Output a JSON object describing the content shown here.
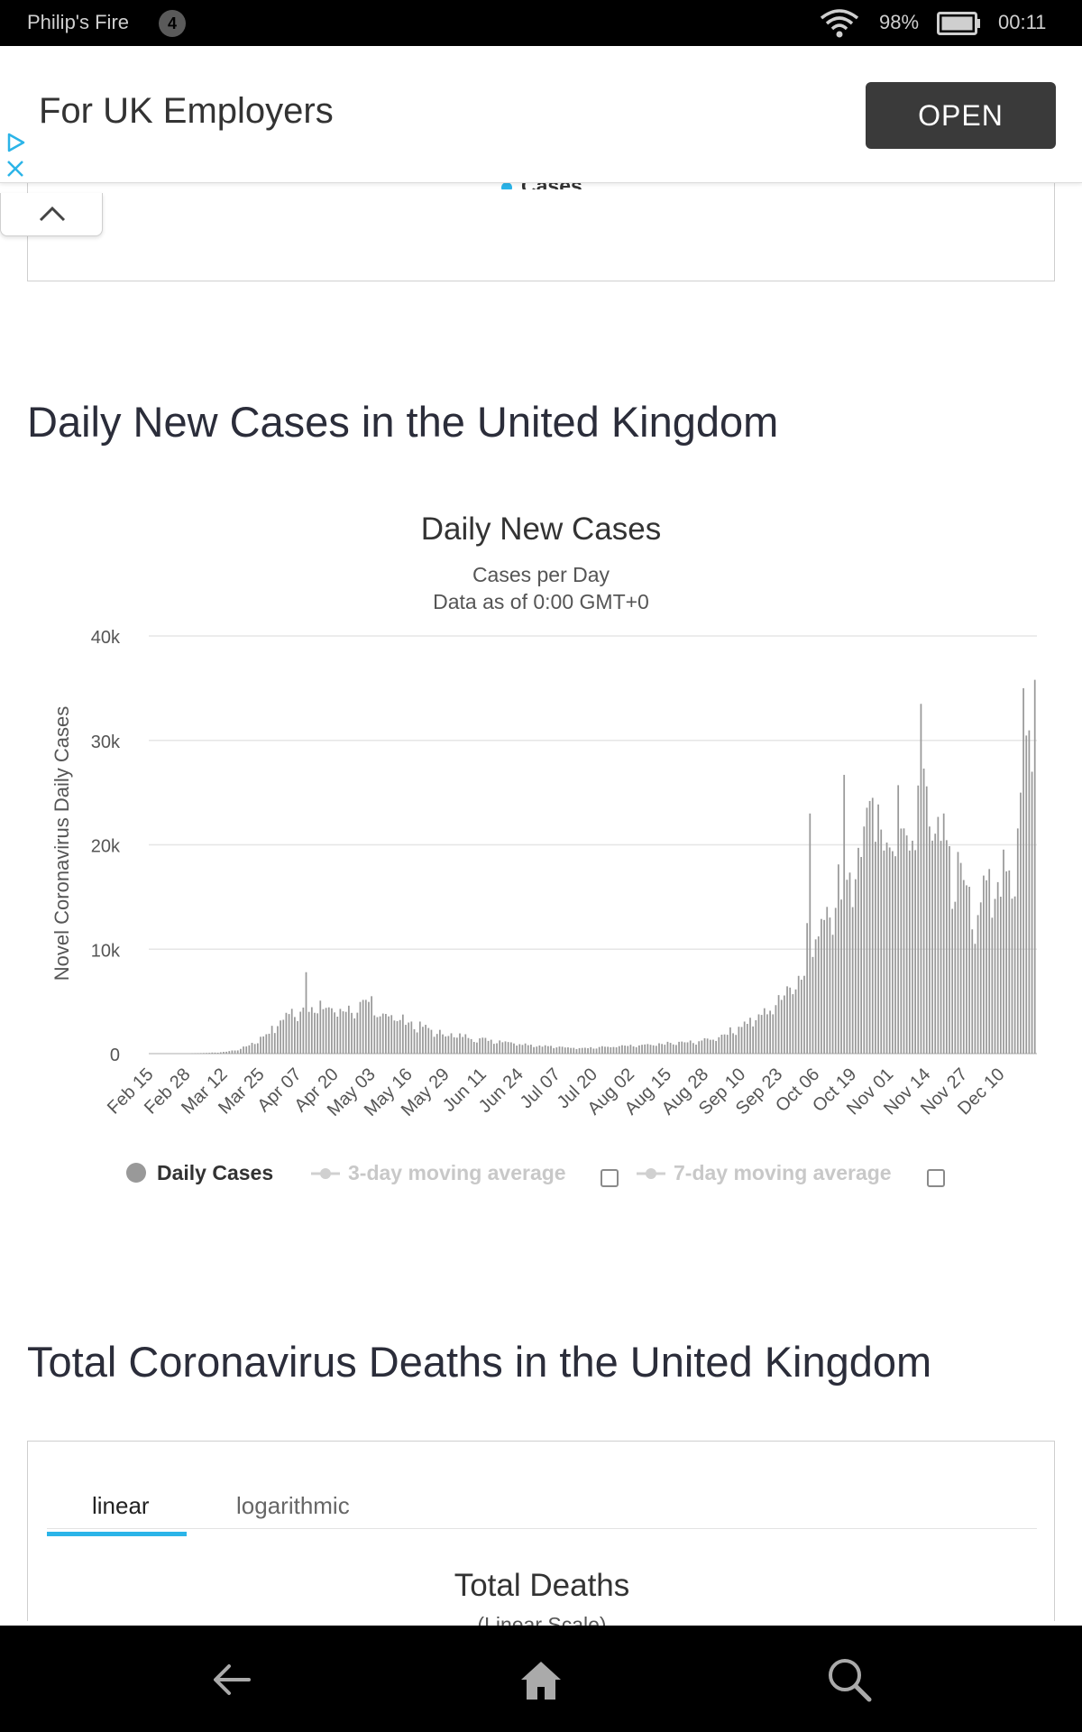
{
  "status_bar": {
    "device_name": "Philip's Fire",
    "notification_count": "4",
    "battery_percent": "98%",
    "time": "00:11",
    "icons": [
      "wifi-icon",
      "battery-icon"
    ]
  },
  "ad": {
    "headline": "For UK Employers",
    "button_label": "OPEN",
    "icons": [
      "adchoices-icon",
      "close-icon"
    ],
    "accent_color": "#2bb4e8"
  },
  "previous_chart": {
    "legend_partial": "Cases"
  },
  "daily_section": {
    "title": "Daily New Cases in the United Kingdom"
  },
  "chart_data": {
    "type": "bar",
    "title": "Daily New Cases",
    "subtitle_1": "Cases per Day",
    "subtitle_2": "Data as of 0:00 GMT+0",
    "ylabel": "Novel Coronavirus Daily Cases",
    "xlabel": "",
    "ylim": [
      0,
      40000
    ],
    "y_ticks": [
      "0",
      "10k",
      "20k",
      "30k",
      "40k"
    ],
    "y_tick_values": [
      0,
      10000,
      20000,
      30000,
      40000
    ],
    "x_tick_labels": [
      "Feb 15",
      "Feb 28",
      "Mar 12",
      "Mar 25",
      "Apr 07",
      "Apr 20",
      "May 03",
      "May 16",
      "May 29",
      "Jun 11",
      "Jun 24",
      "Jul 07",
      "Jul 20",
      "Aug 02",
      "Aug 15",
      "Aug 28",
      "Sep 10",
      "Sep 23",
      "Oct 06",
      "Oct 19",
      "Nov 01",
      "Nov 14",
      "Nov 27",
      "Dec 10"
    ],
    "grid": true,
    "bar_color": "#999999",
    "x_start": "Feb 15",
    "knots": [
      [
        "Feb 15",
        0
      ],
      [
        "Feb 29",
        0
      ],
      [
        "Mar 05",
        50
      ],
      [
        "Mar 12",
        150
      ],
      [
        "Mar 17",
        400
      ],
      [
        "Mar 20",
        700
      ],
      [
        "Mar 25",
        1500
      ],
      [
        "Mar 30",
        2600
      ],
      [
        "Apr 03",
        3800
      ],
      [
        "Apr 06",
        4100
      ],
      [
        "Apr 10",
        4600
      ],
      [
        "Apr 15",
        4500
      ],
      [
        "Apr 20",
        4400
      ],
      [
        "Apr 25",
        4300
      ],
      [
        "May 01",
        4600
      ],
      [
        "May 05",
        4200
      ],
      [
        "May 10",
        3800
      ],
      [
        "May 15",
        3200
      ],
      [
        "May 20",
        2700
      ],
      [
        "May 25",
        2200
      ],
      [
        "May 29",
        1900
      ],
      [
        "Jun 05",
        1700
      ],
      [
        "Jun 11",
        1400
      ],
      [
        "Jun 20",
        1200
      ],
      [
        "Jun 24",
        1000
      ],
      [
        "Jul 01",
        800
      ],
      [
        "Jul 07",
        650
      ],
      [
        "Jul 15",
        600
      ],
      [
        "Jul 20",
        600
      ],
      [
        "Jul 27",
        700
      ],
      [
        "Aug 02",
        750
      ],
      [
        "Aug 10",
        850
      ],
      [
        "Aug 15",
        1000
      ],
      [
        "Aug 22",
        1100
      ],
      [
        "Aug 28",
        1300
      ],
      [
        "Sep 03",
        1800
      ],
      [
        "Sep 10",
        2800
      ],
      [
        "Sep 15",
        3500
      ],
      [
        "Sep 20",
        4300
      ],
      [
        "Sep 23",
        5500
      ],
      [
        "Sep 27",
        6800
      ],
      [
        "Oct 02",
        8500
      ],
      [
        "Oct 06",
        12000
      ],
      [
        "Oct 10",
        14500
      ],
      [
        "Oct 15",
        17000
      ],
      [
        "Oct 19",
        18500
      ],
      [
        "Oct 23",
        21000
      ],
      [
        "Oct 27",
        22000
      ],
      [
        "Nov 01",
        22000
      ],
      [
        "Nov 05",
        23000
      ],
      [
        "Nov 08",
        21500
      ],
      [
        "Nov 12",
        24500
      ],
      [
        "Nov 14",
        25000
      ],
      [
        "Nov 18",
        22000
      ],
      [
        "Nov 22",
        19500
      ],
      [
        "Nov 27",
        16500
      ],
      [
        "Dec 01",
        14500
      ],
      [
        "Dec 05",
        15500
      ],
      [
        "Dec 10",
        17000
      ],
      [
        "Dec 14",
        19500
      ],
      [
        "Dec 17",
        24000
      ],
      [
        "Dec 20",
        30000
      ],
      [
        "Dec 22",
        35500
      ]
    ],
    "notable_days": [
      [
        "Apr 10",
        7800
      ],
      [
        "May 03",
        5500
      ],
      [
        "Oct 03",
        12500
      ],
      [
        "Oct 04",
        23000
      ],
      [
        "Oct 16",
        26700
      ],
      [
        "Oct 26",
        24500
      ],
      [
        "Nov 12",
        33500
      ],
      [
        "Nov 13",
        27300
      ],
      [
        "Nov 20",
        23000
      ],
      [
        "Dec 17",
        25000
      ],
      [
        "Dec 18",
        35000
      ],
      [
        "Dec 21",
        27000
      ],
      [
        "Dec 22",
        35800
      ]
    ],
    "series": [
      {
        "name": "Daily Cases",
        "active": true
      },
      {
        "name": "3-day moving average",
        "active": false
      },
      {
        "name": "7-day moving average",
        "active": false
      }
    ]
  },
  "deaths_section": {
    "title": "Total Coronavirus Deaths in the United Kingdom",
    "tabs": [
      {
        "label": "linear",
        "active": true
      },
      {
        "label": "logarithmic",
        "active": false
      }
    ],
    "chart_title": "Total Deaths",
    "chart_subtitle": "(Linear Scale)"
  },
  "nav_bar": {
    "icons": [
      "back-icon",
      "home-icon",
      "search-icon"
    ]
  }
}
